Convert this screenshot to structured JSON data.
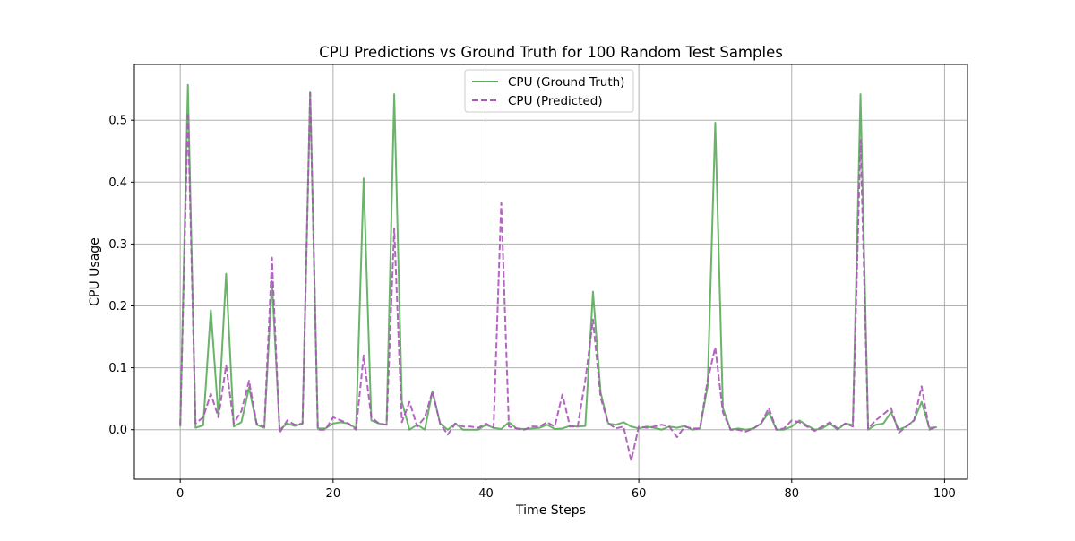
{
  "chart_data": {
    "type": "line",
    "title": "CPU Predictions vs Ground Truth for 100 Random Test Samples",
    "xlabel": "Time Steps",
    "ylabel": "CPU Usage",
    "xlim": [
      -6,
      103
    ],
    "ylim": [
      -0.08,
      0.59
    ],
    "x_ticks": [
      0,
      20,
      40,
      60,
      80,
      100
    ],
    "y_ticks": [
      0.0,
      0.1,
      0.2,
      0.3,
      0.4,
      0.5
    ],
    "x_tick_labels": [
      "0",
      "20",
      "40",
      "60",
      "80",
      "100"
    ],
    "y_tick_labels": [
      "0.0",
      "0.1",
      "0.2",
      "0.3",
      "0.4",
      "0.5"
    ],
    "grid": true,
    "legend_position": "top-center",
    "x": [
      0,
      1,
      2,
      3,
      4,
      5,
      6,
      7,
      8,
      9,
      10,
      11,
      12,
      13,
      14,
      15,
      16,
      17,
      18,
      19,
      20,
      21,
      22,
      23,
      24,
      25,
      26,
      27,
      28,
      29,
      30,
      31,
      32,
      33,
      34,
      35,
      36,
      37,
      38,
      39,
      40,
      41,
      42,
      43,
      44,
      45,
      46,
      47,
      48,
      49,
      50,
      51,
      52,
      53,
      54,
      55,
      56,
      57,
      58,
      59,
      60,
      61,
      62,
      63,
      64,
      65,
      66,
      67,
      68,
      69,
      70,
      71,
      72,
      73,
      74,
      75,
      76,
      77,
      78,
      79,
      80,
      81,
      82,
      83,
      84,
      85,
      86,
      87,
      88,
      89,
      90,
      91,
      92,
      93,
      94,
      95,
      96,
      97,
      98,
      99
    ],
    "series": [
      {
        "name": "CPU (Ground Truth)",
        "color": "#5aac59",
        "style": "solid",
        "values": [
          0.005,
          0.557,
          0.003,
          0.007,
          0.193,
          0.02,
          0.252,
          0.005,
          0.012,
          0.068,
          0.008,
          0.003,
          0.24,
          0.0,
          0.01,
          0.006,
          0.01,
          0.545,
          0.002,
          0.002,
          0.01,
          0.012,
          0.01,
          0.002,
          0.406,
          0.015,
          0.01,
          0.008,
          0.542,
          0.045,
          0.0,
          0.008,
          0.0,
          0.062,
          0.01,
          0.0,
          0.01,
          0.0,
          0.0,
          0.0,
          0.008,
          0.003,
          0.001,
          0.012,
          0.002,
          0.001,
          0.002,
          0.003,
          0.008,
          0.001,
          0.002,
          0.006,
          0.005,
          0.006,
          0.223,
          0.06,
          0.01,
          0.008,
          0.012,
          0.005,
          0.002,
          0.005,
          0.003,
          0.0,
          0.005,
          0.003,
          0.006,
          0.0,
          0.002,
          0.07,
          0.496,
          0.035,
          0.0,
          0.002,
          0.0,
          0.002,
          0.01,
          0.028,
          0.0,
          0.0,
          0.005,
          0.015,
          0.007,
          0.0,
          0.002,
          0.01,
          0.0,
          0.01,
          0.008,
          0.542,
          0.0,
          0.008,
          0.01,
          0.028,
          0.0,
          0.005,
          0.015,
          0.045,
          0.003,
          0.004
        ]
      },
      {
        "name": "CPU (Predicted)",
        "color": "#aa55b8",
        "style": "dashed",
        "values": [
          0.008,
          0.512,
          0.01,
          0.02,
          0.058,
          0.02,
          0.104,
          0.01,
          0.03,
          0.079,
          0.01,
          0.005,
          0.278,
          -0.005,
          0.015,
          0.008,
          0.01,
          0.544,
          0.0,
          0.0,
          0.02,
          0.015,
          0.01,
          0.0,
          0.12,
          0.02,
          0.01,
          0.008,
          0.325,
          0.012,
          0.045,
          0.005,
          0.02,
          0.062,
          0.01,
          -0.008,
          0.01,
          0.005,
          0.005,
          0.003,
          0.01,
          0.003,
          0.367,
          0.005,
          0.002,
          0.0,
          0.005,
          0.005,
          0.012,
          0.005,
          0.057,
          0.005,
          0.005,
          0.08,
          0.178,
          0.052,
          0.01,
          0.002,
          0.005,
          -0.05,
          0.005,
          0.003,
          0.005,
          0.008,
          0.005,
          -0.012,
          0.005,
          0.002,
          0.002,
          0.08,
          0.133,
          0.028,
          0.0,
          0.0,
          -0.003,
          0.002,
          0.01,
          0.035,
          0.0,
          0.002,
          0.015,
          0.012,
          0.005,
          -0.002,
          0.005,
          0.012,
          0.002,
          0.01,
          0.005,
          0.468,
          0.002,
          0.015,
          0.025,
          0.035,
          -0.005,
          0.005,
          0.015,
          0.07,
          0.0,
          0.005
        ]
      }
    ]
  }
}
